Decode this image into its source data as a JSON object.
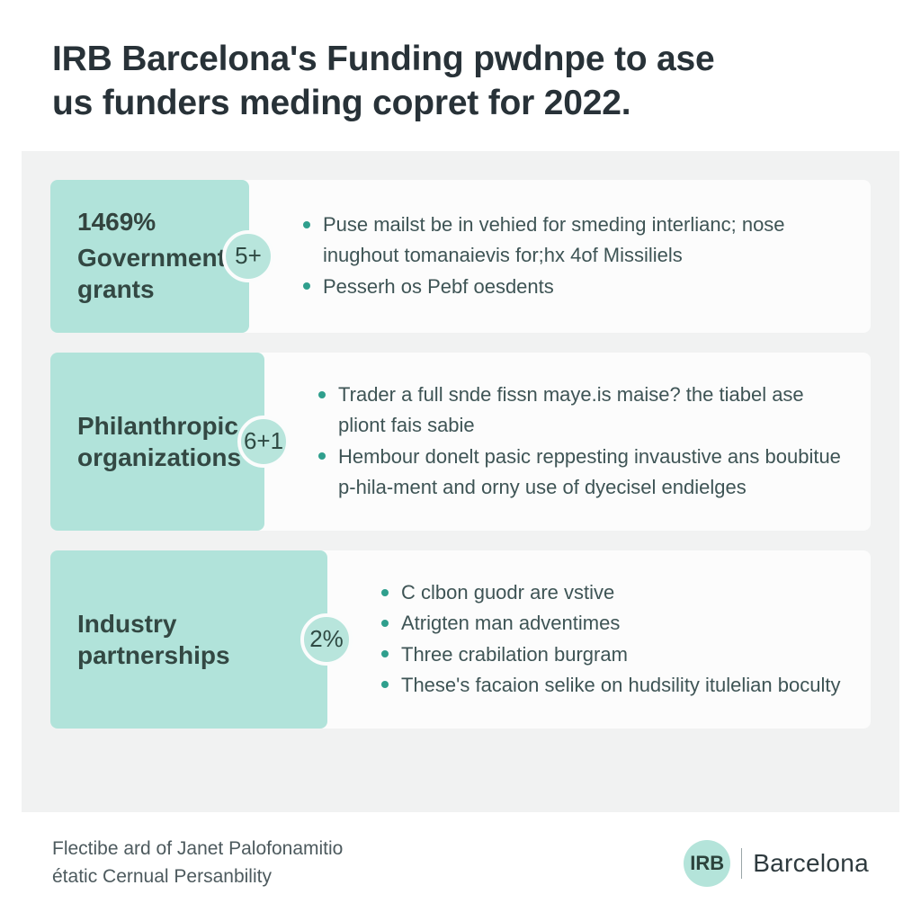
{
  "title_line1": "IRB Barcelona's Funding pwdnpe to ase",
  "title_line2": "us funders meding copret for 2022.",
  "colors": {
    "page_bg": "#ffffff",
    "panel_bg": "#f1f2f2",
    "card_bg": "#b1e3da",
    "row_bg": "#fcfcfc",
    "badge_bg": "#b8e5dc",
    "badge_border": "#fbfcfc",
    "bullet": "#2f9f8d",
    "heading_text": "#283238",
    "card_text": "#334843",
    "body_text": "#3e5455",
    "footer_text": "#4d5a5e"
  },
  "typography": {
    "title_fontsize": 39,
    "title_weight": 700,
    "card_fontsize": 28,
    "card_weight": 600,
    "badge_fontsize": 26,
    "bullet_fontsize": 22,
    "footer_fontsize": 21,
    "logo_fontsize": 28
  },
  "rows": [
    {
      "pct": "1469%",
      "label_l1": "Government",
      "label_l2": "grants",
      "badge": "5+",
      "bullets": [
        "Puse mailst be in vehied for smeding interlianc; nose inughout tomanaievis for;hx 4of Missiliels",
        "Pesserh os Pebf oesdents"
      ]
    },
    {
      "pct": "",
      "label_l1": "Philanthropic",
      "label_l2": "organizations",
      "badge": "6+1",
      "bullets": [
        "Trader a full snde fissn maye.is maise? the tiabel ase pliont fais sabie",
        "Hembour donelt pasic reppesting invaustive ans boubitue p-hila-ment and orny use of dyecisel endielges"
      ]
    },
    {
      "pct": "",
      "label_l1": "Industry",
      "label_l2": "partnerships",
      "badge": "2%",
      "bullets": [
        "C clbon guodr are vstive",
        "Atrigten man adventimes",
        "Three crabilation burgram",
        "These's facaion selike on hudsility itulelian boculty"
      ]
    }
  ],
  "footer_line1": "Flectibe ard of Janet Palofonamitio",
  "footer_line2": "étatic Cernual Persanbility",
  "logo_badge": "IRB",
  "logo_text": "Barcelona"
}
